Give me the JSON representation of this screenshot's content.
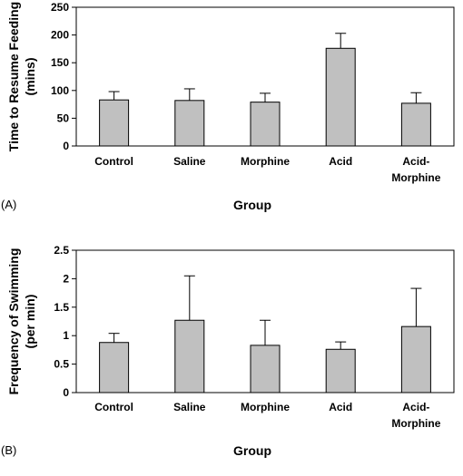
{
  "chart_data": [
    {
      "type": "bar",
      "panel_label": "(A)",
      "x_label": "Group",
      "y_label": "Time to Resume Feeding (mins)",
      "categories": [
        "Control",
        "Saline",
        "Morphine",
        "Acid",
        "Acid-Morphine"
      ],
      "values": [
        83,
        82,
        79,
        176,
        77
      ],
      "errors": [
        15,
        21,
        16,
        27,
        19
      ],
      "color": "#c0c0c0",
      "ylim": [
        0,
        250
      ],
      "yticks": [
        0,
        50,
        100,
        150,
        200,
        250
      ]
    },
    {
      "type": "bar",
      "panel_label": "(B)",
      "x_label": "Group",
      "y_label": "Frequency of Swimming (per min)",
      "categories": [
        "Control",
        "Saline",
        "Morphine",
        "Acid",
        "Acid-Morphine"
      ],
      "values": [
        0.88,
        1.27,
        0.83,
        0.76,
        1.16
      ],
      "errors": [
        0.16,
        0.78,
        0.44,
        0.13,
        0.67
      ],
      "color": "#c0c0c0",
      "ylim": [
        0,
        2.5
      ],
      "yticks": [
        0,
        0.5,
        1,
        1.5,
        2,
        2.5
      ]
    }
  ]
}
